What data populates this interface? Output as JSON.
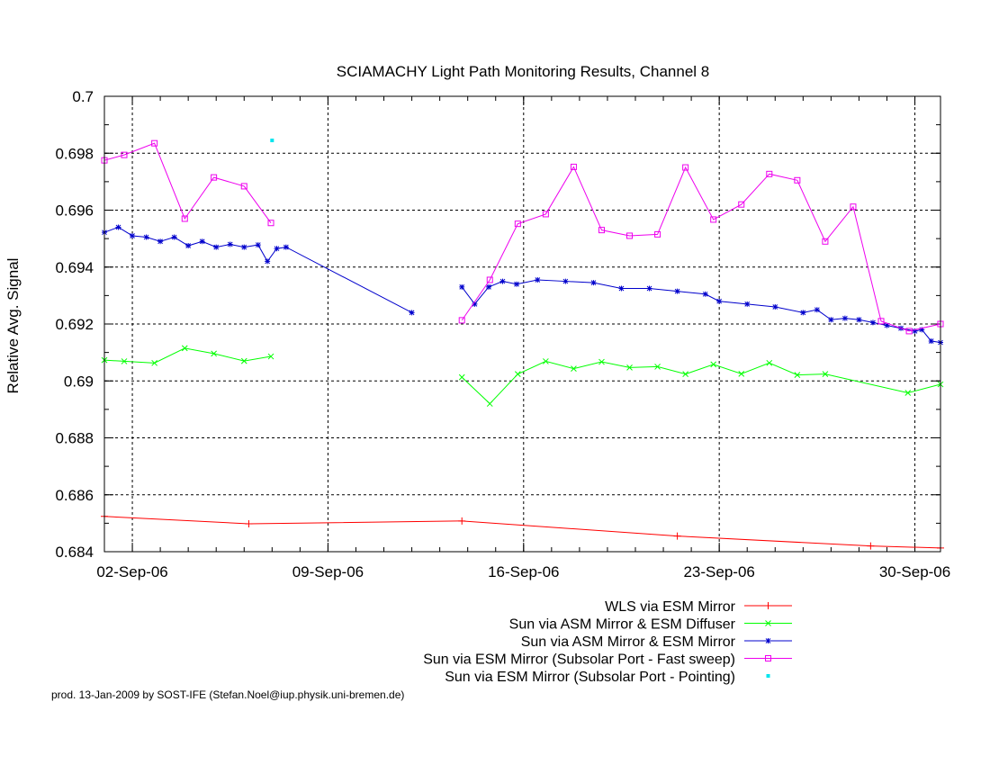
{
  "chart_data": {
    "type": "line",
    "title": "SCIAMACHY Light Path Monitoring Results, Channel 8",
    "ylabel": "Relative Avg. Signal",
    "xlabel": "",
    "ylim": [
      0.684,
      0.7
    ],
    "y_ticks": [
      0.684,
      0.686,
      0.688,
      0.69,
      0.692,
      0.694,
      0.696,
      0.698,
      0.7
    ],
    "y_tick_labels": [
      "0.684",
      "0.686",
      "0.688",
      "0.69",
      "0.692",
      "0.694",
      "0.696",
      "0.698",
      "0.7"
    ],
    "xlim": [
      "2006-09-01",
      "2006-09-30T22:00"
    ],
    "x_ticks": [
      "2006-09-02",
      "2006-09-09",
      "2006-09-16",
      "2006-09-23",
      "2006-09-30"
    ],
    "x_tick_labels": [
      "02-Sep-06",
      "09-Sep-06",
      "16-Sep-06",
      "23-Sep-06",
      "30-Sep-06"
    ],
    "grid": true,
    "legend_placement": "below",
    "footer": "prod. 13-Jan-2009 by SOST-IFE (Stefan.Noel@iup.physik.uni-bremen.de)",
    "series": [
      {
        "name": "WLS via ESM Mirror",
        "color": "#ff0000",
        "marker": "plus",
        "x": [
          "2006-09-01",
          "2006-09-06T04:00",
          "2006-09-13T19:00",
          "2006-09-21T12:00",
          "2006-09-28T10:00",
          "2006-09-30T22:00"
        ],
        "y": [
          0.68524,
          0.68498,
          0.68508,
          0.68455,
          0.6842,
          0.68413
        ]
      },
      {
        "name": "Sun via ASM Mirror & ESM Diffuser",
        "color": "#00ff00",
        "marker": "x",
        "x": [
          "2006-09-01",
          "2006-09-01T17:00",
          "2006-09-02T19:00",
          "2006-09-03T21:00",
          "2006-09-04T22:00",
          "2006-09-06T00:00",
          "2006-09-06T23:00",
          null,
          "2006-09-13T19:00",
          "2006-09-14T19:00",
          "2006-09-15T19:00",
          "2006-09-16T19:00",
          "2006-09-17T19:00",
          "2006-09-18T19:00",
          "2006-09-19T19:00",
          "2006-09-20T19:00",
          "2006-09-21T19:00",
          "2006-09-22T19:00",
          "2006-09-23T19:00",
          "2006-09-24T19:00",
          "2006-09-25T19:00",
          "2006-09-26T19:00",
          "2006-09-29T18:00",
          "2006-09-30T22:00"
        ],
        "y": [
          0.69073,
          0.69069,
          0.69063,
          0.69115,
          0.69096,
          0.6907,
          0.69086,
          null,
          0.69013,
          0.6892,
          0.69024,
          0.69069,
          0.69043,
          0.69067,
          0.69047,
          0.6905,
          0.69024,
          0.69058,
          0.69025,
          0.69063,
          0.69021,
          0.69024,
          0.68958,
          0.68988
        ]
      },
      {
        "name": "Sun via ASM Mirror & ESM Mirror",
        "color": "#0000cc",
        "marker": "star",
        "x": [
          "2006-09-01",
          "2006-09-01T12:00",
          "2006-09-02T00:00",
          "2006-09-02T12:00",
          "2006-09-03T00:00",
          "2006-09-03T12:00",
          "2006-09-04T00:00",
          "2006-09-04T12:00",
          "2006-09-05T00:00",
          "2006-09-05T12:00",
          "2006-09-06T00:00",
          "2006-09-06T12:00",
          "2006-09-06T20:00",
          "2006-09-07T04:00",
          "2006-09-07T12:00",
          "2006-09-12T00:00",
          null,
          "2006-09-13T19:00",
          "2006-09-14T06:00",
          "2006-09-14T18:00",
          "2006-09-15T06:00",
          "2006-09-15T18:00",
          "2006-09-16T12:00",
          "2006-09-17T12:00",
          "2006-09-18T12:00",
          "2006-09-19T12:00",
          "2006-09-20T12:00",
          "2006-09-21T12:00",
          "2006-09-22T12:00",
          "2006-09-23T00:00",
          "2006-09-24T00:00",
          "2006-09-25T00:00",
          "2006-09-26T00:00",
          "2006-09-26T12:00",
          "2006-09-27T00:00",
          "2006-09-27T12:00",
          "2006-09-28T00:00",
          "2006-09-28T12:00",
          "2006-09-29T00:00",
          "2006-09-29T12:00",
          "2006-09-30T00:00",
          "2006-09-30T06:00",
          "2006-09-30T14:00",
          "2006-09-30T22:00"
        ],
        "y": [
          0.69522,
          0.6954,
          0.6951,
          0.69505,
          0.6949,
          0.69505,
          0.69475,
          0.6949,
          0.6947,
          0.6948,
          0.6947,
          0.69478,
          0.6942,
          0.69465,
          0.6947,
          0.6924,
          null,
          0.6933,
          0.6927,
          0.6933,
          0.6935,
          0.6934,
          0.69355,
          0.6935,
          0.69345,
          0.69325,
          0.69325,
          0.69315,
          0.69305,
          0.6928,
          0.6927,
          0.6926,
          0.6924,
          0.6925,
          0.69215,
          0.6922,
          0.69215,
          0.69205,
          0.69195,
          0.69185,
          0.69175,
          0.6918,
          0.6914,
          0.69135
        ]
      },
      {
        "name": "Sun via ESM Mirror (Subsolar Port - Fast sweep)",
        "color": "#ee00ee",
        "marker": "square",
        "x": [
          "2006-09-01",
          "2006-09-01T17:00",
          "2006-09-02T19:00",
          "2006-09-03T21:00",
          "2006-09-04T22:00",
          "2006-09-06T00:00",
          "2006-09-06T23:00",
          null,
          "2006-09-13T19:00",
          "2006-09-14T19:00",
          "2006-09-15T19:00",
          "2006-09-16T19:00",
          "2006-09-17T19:00",
          "2006-09-18T19:00",
          "2006-09-19T19:00",
          "2006-09-20T19:00",
          "2006-09-21T19:00",
          "2006-09-22T19:00",
          "2006-09-23T19:00",
          "2006-09-24T19:00",
          "2006-09-25T19:00",
          "2006-09-26T19:00",
          "2006-09-27T19:00",
          "2006-09-28T19:00",
          "2006-09-29T19:00",
          "2006-09-30T22:00"
        ],
        "y": [
          0.69775,
          0.69794,
          0.69835,
          0.6957,
          0.69715,
          0.69684,
          0.69555,
          null,
          0.69213,
          0.69355,
          0.69552,
          0.69586,
          0.69752,
          0.6953,
          0.6951,
          0.69515,
          0.6975,
          0.69567,
          0.6962,
          0.69727,
          0.69705,
          0.6949,
          0.69612,
          0.6921,
          0.69175,
          0.692
        ]
      },
      {
        "name": "Sun via ESM Mirror (Subsolar Port - Pointing)",
        "color": "#00e5ee",
        "marker": "dot",
        "x": [
          "2006-09-07T00:00"
        ],
        "y": [
          0.69845
        ]
      }
    ]
  }
}
